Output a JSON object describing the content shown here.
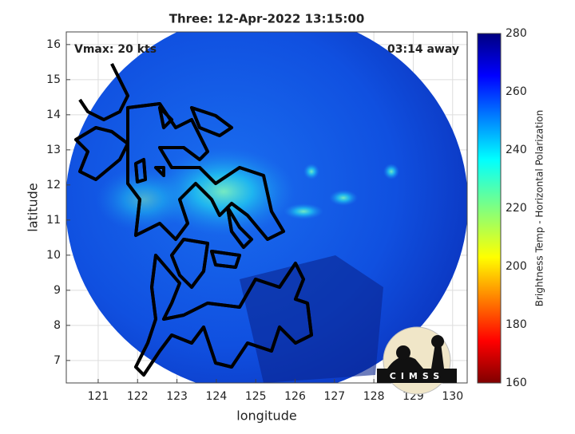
{
  "title": "Three: 12-Apr-2022 13:15:00",
  "annotations": {
    "vmax": "Vmax: 20 kts",
    "eta": "03:14 away"
  },
  "axes": {
    "xlabel": "longitude",
    "ylabel": "latitude",
    "xlim": [
      120.19,
      130.37
    ],
    "ylim": [
      6.36,
      16.36
    ],
    "xticks": [
      121,
      122,
      123,
      124,
      125,
      126,
      127,
      128,
      129,
      130
    ],
    "yticks": [
      7,
      8,
      9,
      10,
      11,
      12,
      13,
      14,
      15,
      16
    ],
    "grid": true
  },
  "colorbar": {
    "label": "Brightness Temp - Horizontal Polarization",
    "lim": [
      160,
      280
    ],
    "ticks": [
      160,
      180,
      200,
      220,
      240,
      260,
      280
    ]
  },
  "logo": {
    "text": "CIMSS"
  }
}
